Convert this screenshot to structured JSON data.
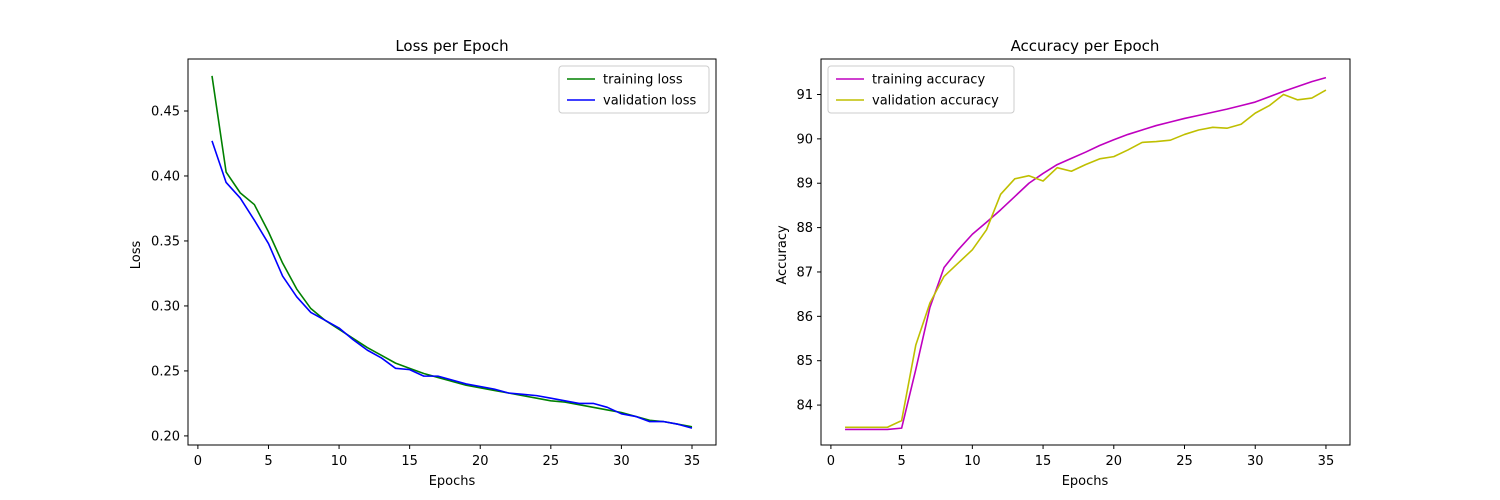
{
  "chart_data": [
    {
      "type": "line",
      "title": "Loss per Epoch",
      "xlabel": "Epochs",
      "ylabel": "Loss",
      "xlim": [
        -0.7,
        36.7
      ],
      "ylim": [
        0.193,
        0.49
      ],
      "xticks": [
        0,
        5,
        10,
        15,
        20,
        25,
        30,
        35
      ],
      "xtick_labels": [
        "0",
        "5",
        "10",
        "15",
        "20",
        "25",
        "30",
        "35"
      ],
      "yticks": [
        0.2,
        0.25,
        0.3,
        0.35,
        0.4,
        0.45
      ],
      "ytick_labels": [
        "0.20",
        "0.25",
        "0.30",
        "0.35",
        "0.40",
        "0.45"
      ],
      "legend_position": "top-right",
      "x": [
        1,
        2,
        3,
        4,
        5,
        6,
        7,
        8,
        9,
        10,
        11,
        12,
        13,
        14,
        15,
        16,
        17,
        18,
        19,
        20,
        21,
        22,
        23,
        24,
        25,
        26,
        27,
        28,
        29,
        30,
        31,
        32,
        33,
        34,
        35
      ],
      "series": [
        {
          "name": "training loss",
          "color": "#008000",
          "values": [
            0.477,
            0.403,
            0.387,
            0.378,
            0.357,
            0.333,
            0.313,
            0.298,
            0.289,
            0.282,
            0.275,
            0.268,
            0.262,
            0.256,
            0.252,
            0.248,
            0.245,
            0.242,
            0.239,
            0.237,
            0.235,
            0.233,
            0.231,
            0.229,
            0.227,
            0.226,
            0.224,
            0.222,
            0.22,
            0.218,
            0.215,
            0.212,
            0.211,
            0.209,
            0.207
          ]
        },
        {
          "name": "validation loss",
          "color": "#0000ff",
          "values": [
            0.427,
            0.395,
            0.383,
            0.366,
            0.348,
            0.323,
            0.307,
            0.295,
            0.289,
            0.283,
            0.274,
            0.266,
            0.26,
            0.252,
            0.251,
            0.246,
            0.246,
            0.243,
            0.24,
            0.238,
            0.236,
            0.233,
            0.232,
            0.231,
            0.229,
            0.227,
            0.225,
            0.225,
            0.222,
            0.217,
            0.215,
            0.211,
            0.211,
            0.209,
            0.206
          ]
        }
      ]
    },
    {
      "type": "line",
      "title": "Accuracy per Epoch",
      "xlabel": "Epochs",
      "ylabel": "Accuracy",
      "xlim": [
        -0.7,
        36.7
      ],
      "ylim": [
        83.1,
        91.8
      ],
      "xticks": [
        0,
        5,
        10,
        15,
        20,
        25,
        30,
        35
      ],
      "xtick_labels": [
        "0",
        "5",
        "10",
        "15",
        "20",
        "25",
        "30",
        "35"
      ],
      "yticks": [
        84,
        85,
        86,
        87,
        88,
        89,
        90,
        91
      ],
      "ytick_labels": [
        "84",
        "85",
        "86",
        "87",
        "88",
        "89",
        "90",
        "91"
      ],
      "legend_position": "top-left",
      "x": [
        1,
        2,
        3,
        4,
        5,
        6,
        7,
        8,
        9,
        10,
        11,
        12,
        13,
        14,
        15,
        16,
        17,
        18,
        19,
        20,
        21,
        22,
        23,
        24,
        25,
        26,
        27,
        28,
        29,
        30,
        31,
        32,
        33,
        34,
        35
      ],
      "series": [
        {
          "name": "training accuracy",
          "color": "#bf00bf",
          "values": [
            83.45,
            83.45,
            83.45,
            83.45,
            83.48,
            84.8,
            86.2,
            87.1,
            87.5,
            87.85,
            88.12,
            88.4,
            88.7,
            89.0,
            89.22,
            89.42,
            89.56,
            89.7,
            89.85,
            89.98,
            90.1,
            90.2,
            90.3,
            90.38,
            90.46,
            90.53,
            90.6,
            90.67,
            90.75,
            90.83,
            90.95,
            91.07,
            91.18,
            91.29,
            91.38
          ]
        },
        {
          "name": "validation accuracy",
          "color": "#bfbf00",
          "values": [
            83.5,
            83.5,
            83.5,
            83.5,
            83.65,
            85.35,
            86.3,
            86.9,
            87.2,
            87.5,
            87.95,
            88.75,
            89.1,
            89.17,
            89.05,
            89.35,
            89.27,
            89.42,
            89.55,
            89.6,
            89.75,
            89.92,
            89.94,
            89.97,
            90.1,
            90.2,
            90.26,
            90.24,
            90.33,
            90.58,
            90.75,
            91.0,
            90.88,
            90.92,
            91.1
          ]
        }
      ]
    }
  ]
}
